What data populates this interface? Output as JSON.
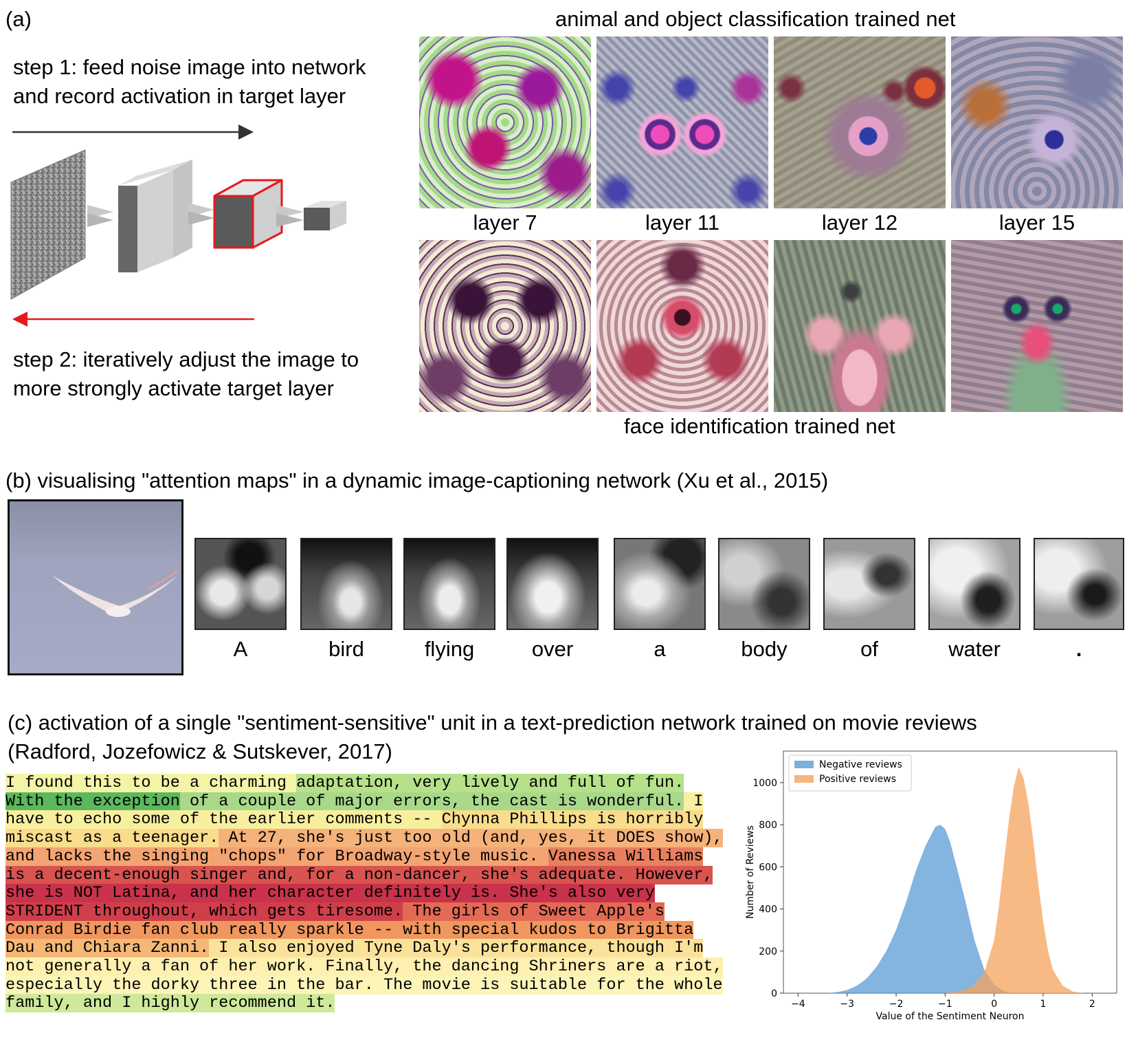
{
  "panel_a": {
    "label": "(a)",
    "top_title": "animal and object classification trained net",
    "bottom_title": "face identification trained net",
    "step1_line1": "step 1: feed noise image into network",
    "step1_line2": "and record activation in target layer",
    "step2_line1": "step 2: iteratively adjust the image to",
    "step2_line2": "more strongly activate target layer",
    "layer_labels": [
      "layer 7",
      "layer 11",
      "layer 12",
      "layer 15"
    ],
    "colors": {
      "forward_arrow": "#333333",
      "backward_arrow": "#e31a1c",
      "target_box": "#e31a1c"
    }
  },
  "panel_b": {
    "title": "(b) visualising \"attention maps\" in a dynamic image-captioning network (Xu et al., 2015)",
    "words": [
      "A",
      "bird",
      "flying",
      "over",
      "a",
      "body",
      "of",
      "water",
      "."
    ]
  },
  "panel_c": {
    "title_line1": "(c) activation of a single \"sentiment-sensitive\" unit in a text-prediction network trained on movie reviews",
    "title_line2": "(Radford, Jozefowicz & Sutskever, 2017)",
    "review_lines": [
      [
        {
          "t": "I found this to be a charming ",
          "c": "#f3f4a6"
        },
        {
          "t": "adaptation, very lively and full of fun.",
          "c": "#b6e08a"
        }
      ],
      [
        {
          "t": "With the exception",
          "c": "#5cb85c"
        },
        {
          "t": " of a couple of major errors, the cast is wonderful.",
          "c": "#a8d98a"
        },
        {
          "t": " I",
          "c": "#f7f0a0"
        }
      ],
      [
        {
          "t": "have to echo some of the earlier comments -- ",
          "c": "#f8ef9e"
        },
        {
          "t": "Chynna Phillips is horribly",
          "c": "#f9dc8c"
        }
      ],
      [
        {
          "t": "miscast as a teenager.",
          "c": "#f9dc8c"
        },
        {
          "t": " At 27, she's just too old (and, yes, it DOES show),",
          "c": "#f5b27a"
        }
      ],
      [
        {
          "t": "and lacks the singing \"chops\" for Broadway-style music. ",
          "c": "#f2a472"
        },
        {
          "t": "Vanessa Williams",
          "c": "#e8805f"
        }
      ],
      [
        {
          "t": "is a decent-enough singer and, for a non-dancer, she's adequate. However,",
          "c": "#d9534f"
        }
      ],
      [
        {
          "t": "she is NOT Latina, and her character definitely is. She's also very",
          "c": "#c9324a"
        }
      ],
      [
        {
          "t": "STRIDENT throughout, which gets tiresome.",
          "c": "#cf3f4a"
        },
        {
          "t": " The girls of Sweet Apple's",
          "c": "#e36a55"
        }
      ],
      [
        {
          "t": "Conrad Birdie fan club really sparkle -- with special kudos to Brigitta",
          "c": "#f0965f"
        }
      ],
      [
        {
          "t": "Dau and Chiara Zanni.",
          "c": "#f6b876"
        },
        {
          "t": " I also enjoyed Tyne Daly's performance, though I'm",
          "c": "#fbe29a"
        }
      ],
      [
        {
          "t": "not generally a fan of her work. Finally, the dancing Shriners are a riot,",
          "c": "#fdf0b0"
        }
      ],
      [
        {
          "t": "especially the dorky three in the bar. The movie is suitable for the whole",
          "c": "#fdf4b8"
        }
      ],
      [
        {
          "t": "family, and I highly recommend it.",
          "c": "#cfe99a"
        }
      ]
    ]
  },
  "chart_data": {
    "type": "area",
    "xlabel": "Value of the Sentiment Neuron",
    "ylabel": "Number of Reviews",
    "xlim": [
      -4.3,
      2.5
    ],
    "ylim": [
      0,
      1150
    ],
    "xticks": [
      -4,
      -3,
      -2,
      -1,
      0,
      1,
      2
    ],
    "yticks": [
      0,
      200,
      400,
      600,
      800,
      1000
    ],
    "legend_position": "top-left",
    "series": [
      {
        "name": "Negative reviews",
        "color": "#5b9bd5",
        "x": [
          -3.4,
          -3.2,
          -3.0,
          -2.8,
          -2.6,
          -2.4,
          -2.2,
          -2.0,
          -1.8,
          -1.6,
          -1.4,
          -1.2,
          -1.1,
          -1.0,
          -0.9,
          -0.8,
          -0.6,
          -0.4,
          -0.2,
          0.0,
          0.2,
          0.4
        ],
        "values": [
          0,
          5,
          15,
          35,
          70,
          125,
          200,
          300,
          430,
          580,
          700,
          790,
          800,
          780,
          720,
          630,
          450,
          250,
          110,
          40,
          10,
          0
        ]
      },
      {
        "name": "Positive reviews",
        "color": "#f5a35c",
        "x": [
          -1.0,
          -0.6,
          -0.4,
          -0.2,
          0.0,
          0.1,
          0.2,
          0.3,
          0.4,
          0.5,
          0.6,
          0.7,
          0.8,
          0.9,
          1.0,
          1.1,
          1.2,
          1.4,
          1.6,
          1.8
        ],
        "values": [
          0,
          15,
          40,
          100,
          250,
          420,
          620,
          820,
          980,
          1075,
          1020,
          900,
          720,
          520,
          340,
          200,
          110,
          35,
          8,
          0
        ]
      }
    ]
  }
}
